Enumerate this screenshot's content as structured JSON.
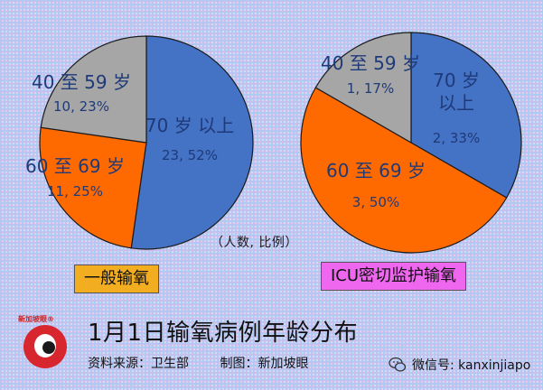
{
  "chart_data": [
    {
      "type": "pie",
      "name": "一般输氧",
      "slices": [
        {
          "label_line1": "70 岁 以上",
          "label_line2": "23, 52%",
          "count": 23,
          "percent": 52,
          "color": "#4472c4"
        },
        {
          "label_line1": "60 至 69 岁",
          "label_line2": "11, 25%",
          "count": 11,
          "percent": 25,
          "color": "#ff6a00"
        },
        {
          "label_line1": "40 至 59 岁",
          "label_line2": "10, 23%",
          "count": 10,
          "percent": 23,
          "color": "#a6a6a6"
        }
      ]
    },
    {
      "type": "pie",
      "name": "ICU密切监护输氧",
      "slices": [
        {
          "label_line1": "70 岁",
          "label_line1b": "以上",
          "label_line2": "2, 33%",
          "count": 2,
          "percent": 33,
          "color": "#4472c4"
        },
        {
          "label_line1": "60 至 69 岁",
          "label_line2": "3, 50%",
          "count": 3,
          "percent": 50,
          "color": "#ff6a00"
        },
        {
          "label_line1": "40 至 59 岁",
          "label_line2": "1, 17%",
          "count": 1,
          "percent": 17,
          "color": "#a6a6a6"
        }
      ]
    }
  ],
  "unit_note": "（人数, 比例）",
  "general_label": "一般输氧",
  "icu_label": "ICU密切监护输氧",
  "title": "1月1日输氧病例年龄分布",
  "source": "资料来源：卫生部",
  "credit": "制图：新加坡眼",
  "logo": {
    "text": "新加坡眼®",
    "icon": "xinjiapo-eye-logo"
  },
  "wechat": {
    "icon": "wechat-icon",
    "text": "微信号: kanxinjiapo"
  }
}
